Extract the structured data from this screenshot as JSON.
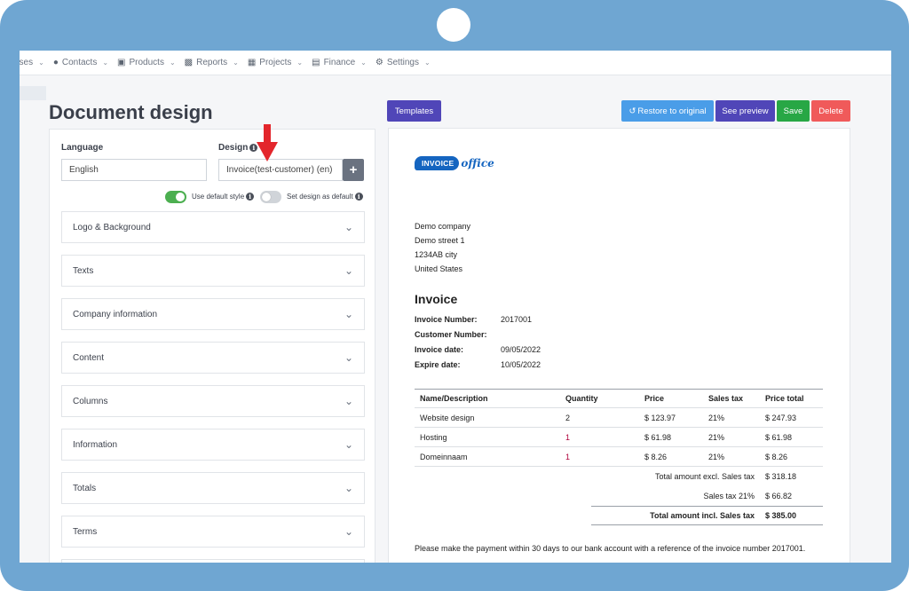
{
  "nav": {
    "items": [
      {
        "label": "nses",
        "icon": ""
      },
      {
        "label": "Contacts",
        "icon": "👤"
      },
      {
        "label": "Products",
        "icon": "🛒"
      },
      {
        "label": "Reports",
        "icon": "▇"
      },
      {
        "label": "Projects",
        "icon": "▦"
      },
      {
        "label": "Finance",
        "icon": "▇"
      },
      {
        "label": "Settings",
        "icon": "⚙"
      }
    ]
  },
  "page": {
    "title": "Document design"
  },
  "form": {
    "language_label": "Language",
    "language_value": "English",
    "design_label": "Design",
    "design_value": "Invoice(test-customer) (en)",
    "add_label": "+",
    "use_default_style": "Use default style",
    "set_default": "Set design as default",
    "info_glyph": "i"
  },
  "sections": [
    {
      "label": "Logo & Background"
    },
    {
      "label": "Texts"
    },
    {
      "label": "Company information"
    },
    {
      "label": "Content"
    },
    {
      "label": "Columns"
    },
    {
      "label": "Information"
    },
    {
      "label": "Totals"
    },
    {
      "label": "Terms"
    }
  ],
  "buttons": {
    "templates": "Templates",
    "restore": "Restore to original",
    "preview": "See preview",
    "save": "Save",
    "delete": "Delete"
  },
  "colors": {
    "templates": "#5046b8",
    "restore": "#4a9de8",
    "preview": "#5046b8",
    "save": "#28a745",
    "delete": "#f05a5a",
    "arrow": "#e3262c"
  },
  "doc": {
    "logo_left": "INVOICE",
    "logo_right": "office",
    "address": [
      "Demo company",
      "Demo street 1",
      "1234AB city",
      "United States"
    ],
    "heading": "Invoice",
    "meta": [
      {
        "key": "Invoice Number:",
        "value": "2017001"
      },
      {
        "key": "Customer Number:",
        "value": ""
      },
      {
        "key": "Invoice date:",
        "value": "09/05/2022"
      },
      {
        "key": "Expire date:",
        "value": "10/05/2022"
      }
    ],
    "columns": [
      "Name/Description",
      "Quantity",
      "Price",
      "Sales tax",
      "Price total"
    ],
    "rows": [
      [
        "Website design",
        "2",
        "$ 123.97",
        "21%",
        "$ 247.93"
      ],
      [
        "Hosting",
        "1",
        "$ 61.98",
        "21%",
        "$ 61.98"
      ],
      [
        "Domeinnaam",
        "1",
        "$ 8.26",
        "21%",
        "$ 8.26"
      ]
    ],
    "totals": [
      {
        "label": "Total amount excl. Sales tax",
        "value": "$ 318.18"
      },
      {
        "label": "Sales tax 21%",
        "value": "$ 66.82"
      },
      {
        "label": "Total amount incl. Sales tax",
        "value": "$ 385.00"
      }
    ],
    "footer": "Please make the payment within 30 days to our bank account with a reference of the invoice number 2017001."
  }
}
